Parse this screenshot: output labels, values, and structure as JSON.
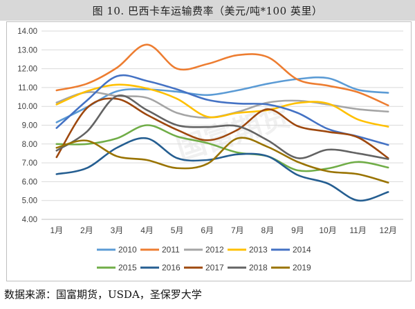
{
  "title": "图 10. 巴西卡车运输费率（美元/吨*100 英里）",
  "source": "数据来源：国富期货，USDA，圣保罗大学",
  "watermark": "国富期货",
  "chart_data": {
    "type": "line",
    "title": "图 10. 巴西卡车运输费率（美元/吨*100 英里）",
    "xlabel": "",
    "ylabel": "",
    "categories": [
      "1月",
      "2月",
      "3月",
      "4月",
      "5月",
      "6月",
      "7月",
      "8月",
      "9月",
      "10月",
      "11月",
      "12月"
    ],
    "ylim": [
      4.0,
      14.0
    ],
    "yticks": [
      "4.00",
      "5.00",
      "6.00",
      "7.00",
      "8.00",
      "9.00",
      "10.00",
      "11.00",
      "12.00",
      "13.00",
      "14.00"
    ],
    "grid": "horizontal",
    "legend_position": "bottom",
    "series": [
      {
        "name": "2010",
        "color": "#5b9bd5",
        "values": [
          9.15,
          9.95,
          10.8,
          10.9,
          10.78,
          10.6,
          10.85,
          11.2,
          11.45,
          11.5,
          10.88,
          10.72
        ]
      },
      {
        "name": "2011",
        "color": "#ed7d31",
        "values": [
          10.85,
          11.2,
          12.05,
          13.28,
          12.0,
          12.25,
          12.72,
          12.62,
          11.42,
          11.1,
          10.75,
          10.05
        ]
      },
      {
        "name": "2012",
        "color": "#a5a5a5",
        "values": [
          10.2,
          10.75,
          10.55,
          10.45,
          9.65,
          9.4,
          9.7,
          10.2,
          10.3,
          10.1,
          9.85,
          9.72
        ]
      },
      {
        "name": "2013",
        "color": "#ffc000",
        "values": [
          10.1,
          10.8,
          11.15,
          10.95,
          10.4,
          9.45,
          9.65,
          9.8,
          10.18,
          10.15,
          9.3,
          8.92
        ]
      },
      {
        "name": "2014",
        "color": "#4472c4",
        "values": [
          8.85,
          10.3,
          11.6,
          11.35,
          10.9,
          10.35,
          10.15,
          10.1,
          9.65,
          8.8,
          8.4,
          7.95
        ]
      },
      {
        "name": "2015",
        "color": "#70ad47",
        "values": [
          8.0,
          8.0,
          8.3,
          9.0,
          8.4,
          8.05,
          7.55,
          7.35,
          6.6,
          6.7,
          7.05,
          6.75
        ]
      },
      {
        "name": "2016",
        "color": "#255e91",
        "values": [
          6.4,
          6.72,
          7.8,
          8.3,
          7.25,
          7.15,
          7.45,
          7.35,
          6.35,
          5.9,
          5.0,
          5.45
        ]
      },
      {
        "name": "2017",
        "color": "#9e480e",
        "values": [
          7.3,
          9.9,
          10.4,
          9.55,
          8.75,
          8.2,
          8.75,
          9.85,
          8.95,
          8.65,
          8.35,
          7.25
        ]
      },
      {
        "name": "2018",
        "color": "#636363",
        "values": [
          7.65,
          8.65,
          10.55,
          9.8,
          9.0,
          8.9,
          8.95,
          8.2,
          7.25,
          7.7,
          7.5,
          7.2
        ]
      },
      {
        "name": "2019",
        "color": "#997300",
        "values": [
          7.8,
          8.18,
          7.35,
          7.15,
          6.72,
          6.95,
          8.3,
          7.85,
          7.05,
          6.55,
          6.4,
          5.95
        ]
      }
    ]
  }
}
